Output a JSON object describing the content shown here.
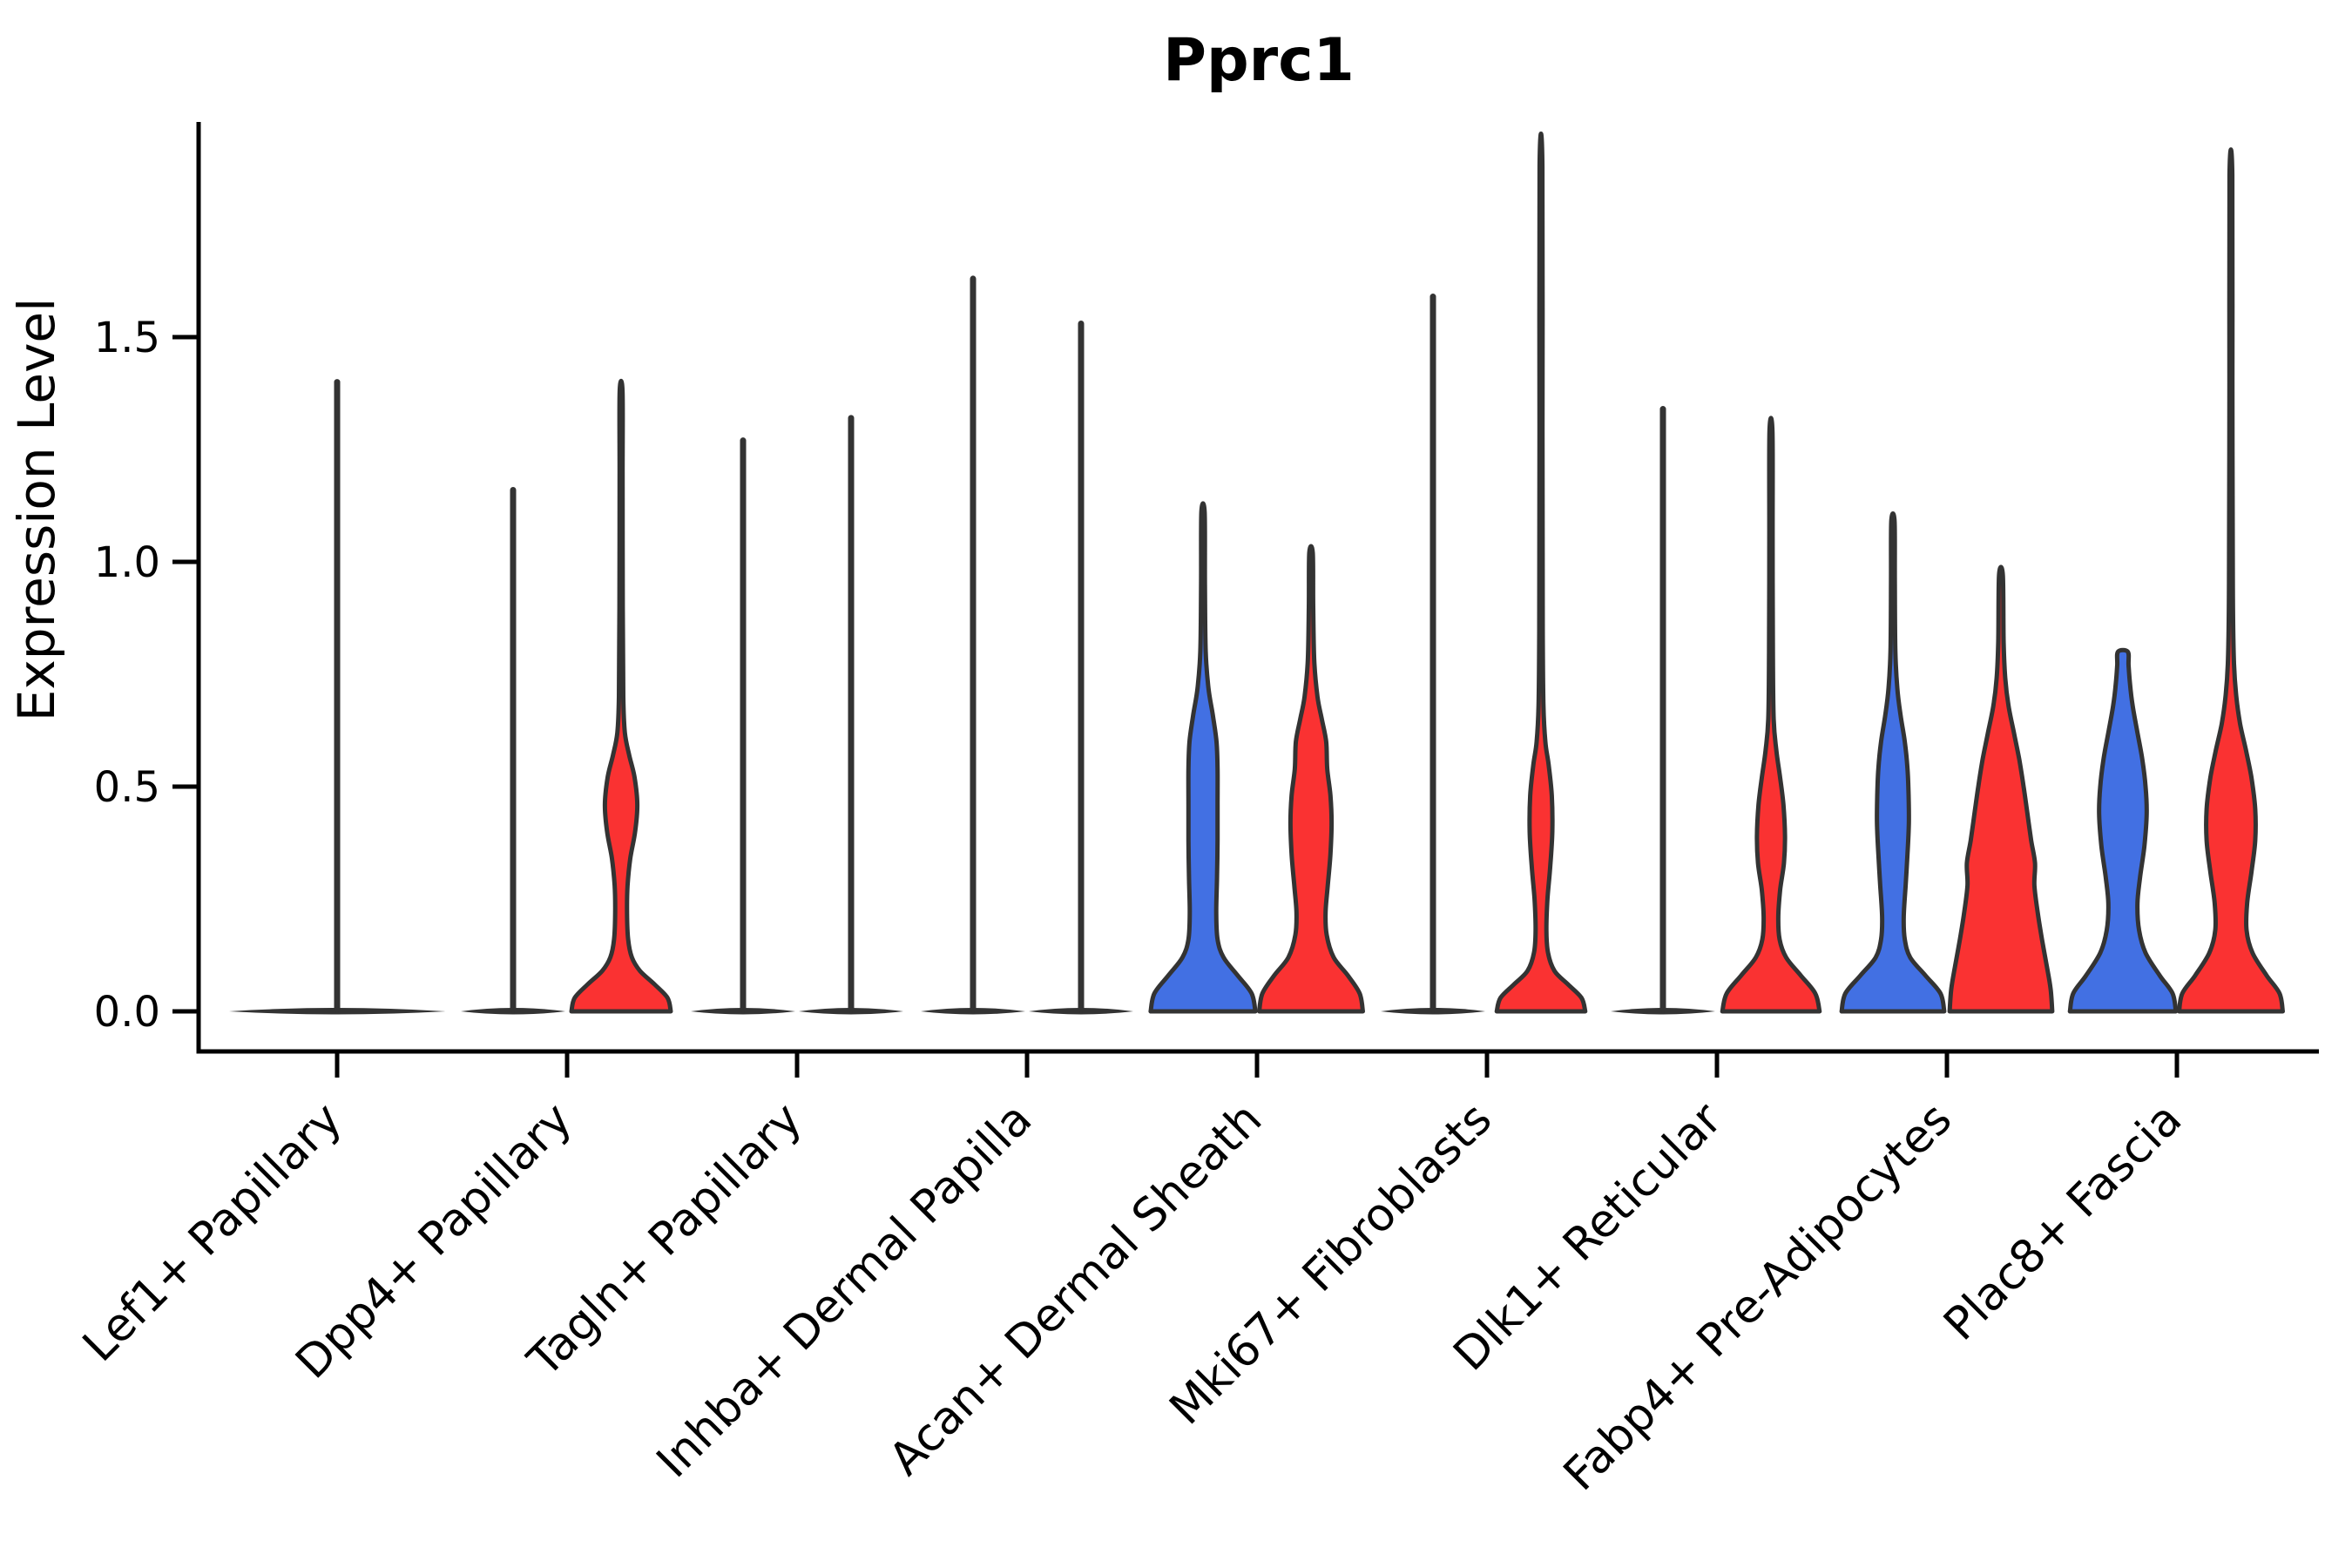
{
  "chart_data": {
    "type": "violin",
    "title": "Pprc1",
    "ylabel": "Expression Level",
    "xlabel": "",
    "ytick_labels": [
      "0.0",
      "0.5",
      "1.0",
      "1.5"
    ],
    "ytick_values": [
      0.0,
      0.5,
      1.0,
      1.5
    ],
    "ylim": [
      -0.09,
      1.97
    ],
    "grid": false,
    "legend": "none",
    "categories": [
      "Lef1+ Papillary",
      "Dpp4+ Papillary",
      "Tagln+ Papillary",
      "Inhba+ Dermal Papilla",
      "Acan+ Dermal Sheath",
      "Mki67+ Fibroblasts",
      "Dlk1+ Reticular",
      "Fabp4+ Pre-Adipocytes",
      "Plac8+ Fascia"
    ],
    "group_colors": {
      "blue": "#4270e3",
      "red": "#fa3232"
    },
    "outline_color": "#333333",
    "violins": [
      {
        "category": "Lef1+ Papillary",
        "series": [
          {
            "group": "single",
            "flat": true,
            "span": "full",
            "max": 1.4
          }
        ]
      },
      {
        "category": "Dpp4+ Papillary",
        "series": [
          {
            "group": "blue",
            "flat": true,
            "max": 1.16
          },
          {
            "group": "red",
            "max": 1.38,
            "profile": [
              [
                0,
                0.92
              ],
              [
                0.03,
                0.86
              ],
              [
                0.06,
                0.62
              ],
              [
                0.09,
                0.35
              ],
              [
                0.12,
                0.2
              ],
              [
                0.16,
                0.13
              ],
              [
                0.22,
                0.11
              ],
              [
                0.28,
                0.12
              ],
              [
                0.34,
                0.17
              ],
              [
                0.4,
                0.26
              ],
              [
                0.46,
                0.3
              ],
              [
                0.52,
                0.25
              ],
              [
                0.57,
                0.15
              ],
              [
                0.62,
                0.07
              ],
              [
                0.7,
                0.04
              ],
              [
                0.9,
                0.03
              ],
              [
                1.2,
                0.028
              ],
              [
                1.38,
                0.026
              ]
            ]
          }
        ]
      },
      {
        "category": "Tagln+ Papillary",
        "series": [
          {
            "group": "blue",
            "flat": true,
            "max": 1.27
          },
          {
            "group": "red",
            "flat": true,
            "max": 1.32
          }
        ]
      },
      {
        "category": "Inhba+ Dermal Papilla",
        "series": [
          {
            "group": "blue",
            "flat": true,
            "max": 1.63
          },
          {
            "group": "red",
            "flat": true,
            "max": 1.53
          }
        ]
      },
      {
        "category": "Acan+ Dermal Sheath",
        "series": [
          {
            "group": "blue",
            "max": 1.11,
            "profile": [
              [
                0,
                0.97
              ],
              [
                0.04,
                0.9
              ],
              [
                0.08,
                0.64
              ],
              [
                0.12,
                0.38
              ],
              [
                0.16,
                0.27
              ],
              [
                0.22,
                0.245
              ],
              [
                0.3,
                0.26
              ],
              [
                0.38,
                0.27
              ],
              [
                0.46,
                0.27
              ],
              [
                0.54,
                0.27
              ],
              [
                0.6,
                0.25
              ],
              [
                0.66,
                0.18
              ],
              [
                0.72,
                0.1
              ],
              [
                0.8,
                0.05
              ],
              [
                0.95,
                0.035
              ],
              [
                1.11,
                0.03
              ]
            ]
          },
          {
            "group": "red",
            "max": 1.02,
            "profile": [
              [
                0,
                0.96
              ],
              [
                0.04,
                0.9
              ],
              [
                0.08,
                0.68
              ],
              [
                0.12,
                0.42
              ],
              [
                0.17,
                0.29
              ],
              [
                0.22,
                0.27
              ],
              [
                0.28,
                0.31
              ],
              [
                0.35,
                0.36
              ],
              [
                0.42,
                0.38
              ],
              [
                0.48,
                0.36
              ],
              [
                0.54,
                0.3
              ],
              [
                0.6,
                0.28
              ],
              [
                0.65,
                0.2
              ],
              [
                0.7,
                0.12
              ],
              [
                0.78,
                0.06
              ],
              [
                0.9,
                0.04
              ],
              [
                1.02,
                0.032
              ]
            ]
          }
        ]
      },
      {
        "category": "Mki67+ Fibroblasts",
        "series": [
          {
            "group": "blue",
            "flat": true,
            "max": 1.59
          },
          {
            "group": "red",
            "max": 1.88,
            "profile": [
              [
                0,
                0.82
              ],
              [
                0.03,
                0.75
              ],
              [
                0.06,
                0.5
              ],
              [
                0.09,
                0.25
              ],
              [
                0.13,
                0.13
              ],
              [
                0.18,
                0.1
              ],
              [
                0.25,
                0.12
              ],
              [
                0.32,
                0.17
              ],
              [
                0.4,
                0.21
              ],
              [
                0.48,
                0.2
              ],
              [
                0.55,
                0.14
              ],
              [
                0.6,
                0.08
              ],
              [
                0.68,
                0.045
              ],
              [
                0.85,
                0.032
              ],
              [
                1.3,
                0.028
              ],
              [
                1.88,
                0.026
              ]
            ]
          }
        ]
      },
      {
        "category": "Dlk1+ Reticular",
        "series": [
          {
            "group": "blue",
            "flat": true,
            "max": 1.34
          },
          {
            "group": "red",
            "max": 1.29,
            "profile": [
              [
                0,
                0.9
              ],
              [
                0.04,
                0.82
              ],
              [
                0.08,
                0.55
              ],
              [
                0.12,
                0.28
              ],
              [
                0.16,
                0.16
              ],
              [
                0.21,
                0.135
              ],
              [
                0.27,
                0.17
              ],
              [
                0.33,
                0.24
              ],
              [
                0.39,
                0.26
              ],
              [
                0.46,
                0.23
              ],
              [
                0.52,
                0.17
              ],
              [
                0.58,
                0.1
              ],
              [
                0.65,
                0.05
              ],
              [
                0.8,
                0.035
              ],
              [
                1.05,
                0.03
              ],
              [
                1.29,
                0.028
              ]
            ]
          }
        ]
      },
      {
        "category": "Fabp4+ Pre-Adipocytes",
        "series": [
          {
            "group": "blue",
            "max": 1.09,
            "profile": [
              [
                0,
                0.95
              ],
              [
                0.04,
                0.88
              ],
              [
                0.08,
                0.6
              ],
              [
                0.12,
                0.32
              ],
              [
                0.16,
                0.22
              ],
              [
                0.21,
                0.2
              ],
              [
                0.28,
                0.235
              ],
              [
                0.35,
                0.27
              ],
              [
                0.42,
                0.295
              ],
              [
                0.48,
                0.29
              ],
              [
                0.54,
                0.27
              ],
              [
                0.6,
                0.22
              ],
              [
                0.66,
                0.14
              ],
              [
                0.72,
                0.08
              ],
              [
                0.8,
                0.045
              ],
              [
                0.95,
                0.035
              ],
              [
                1.09,
                0.03
              ]
            ]
          },
          {
            "group": "red",
            "max": 0.97,
            "profile": [
              [
                0,
                0.95
              ],
              [
                0.05,
                0.92
              ],
              [
                0.1,
                0.85
              ],
              [
                0.16,
                0.76
              ],
              [
                0.22,
                0.68
              ],
              [
                0.28,
                0.62
              ],
              [
                0.33,
                0.63
              ],
              [
                0.38,
                0.56
              ],
              [
                0.44,
                0.49
              ],
              [
                0.5,
                0.42
              ],
              [
                0.56,
                0.34
              ],
              [
                0.62,
                0.24
              ],
              [
                0.68,
                0.14
              ],
              [
                0.74,
                0.08
              ],
              [
                0.82,
                0.05
              ],
              [
                0.97,
                0.035
              ]
            ]
          }
        ]
      },
      {
        "category": "Plac8+ Fascia",
        "series": [
          {
            "group": "blue",
            "max": 0.8,
            "blunt_top": true,
            "profile": [
              [
                0,
                0.98
              ],
              [
                0.04,
                0.92
              ],
              [
                0.08,
                0.68
              ],
              [
                0.13,
                0.42
              ],
              [
                0.18,
                0.3
              ],
              [
                0.24,
                0.27
              ],
              [
                0.3,
                0.32
              ],
              [
                0.37,
                0.4
              ],
              [
                0.44,
                0.44
              ],
              [
                0.5,
                0.42
              ],
              [
                0.56,
                0.36
              ],
              [
                0.62,
                0.27
              ],
              [
                0.68,
                0.18
              ],
              [
                0.73,
                0.13
              ],
              [
                0.77,
                0.105
              ],
              [
                0.8,
                0.09
              ]
            ]
          },
          {
            "group": "red",
            "max": 1.86,
            "profile": [
              [
                0,
                0.96
              ],
              [
                0.04,
                0.9
              ],
              [
                0.08,
                0.66
              ],
              [
                0.13,
                0.4
              ],
              [
                0.18,
                0.29
              ],
              [
                0.24,
                0.3
              ],
              [
                0.31,
                0.38
              ],
              [
                0.38,
                0.45
              ],
              [
                0.45,
                0.45
              ],
              [
                0.52,
                0.38
              ],
              [
                0.58,
                0.28
              ],
              [
                0.64,
                0.17
              ],
              [
                0.7,
                0.1
              ],
              [
                0.78,
                0.055
              ],
              [
                0.95,
                0.035
              ],
              [
                1.4,
                0.028
              ],
              [
                1.86,
                0.026
              ]
            ]
          }
        ]
      }
    ]
  }
}
